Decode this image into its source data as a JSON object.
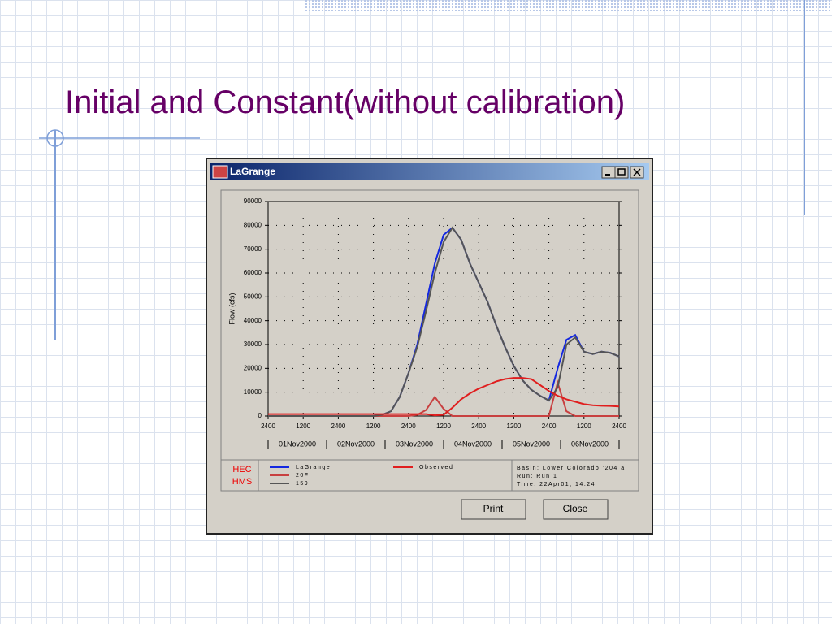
{
  "slide": {
    "title": "Initial and Constant(without calibration)"
  },
  "window": {
    "title": "LaGrange",
    "logo": [
      "HEC",
      "HMS"
    ],
    "info": [
      "Basin: Lower Colorado '204 a",
      "Run: Run 1",
      "Time: 22Apr01, 14:24"
    ],
    "buttons": [
      "Print",
      "Close"
    ]
  },
  "chart_data": {
    "type": "line",
    "y_label": "Flow (cfs)",
    "x": [
      0,
      3,
      6,
      9,
      12,
      15,
      18,
      21,
      24,
      27,
      30,
      33,
      36,
      39,
      42,
      45,
      48,
      51,
      54,
      57,
      60,
      63,
      66,
      69,
      72,
      75,
      78,
      81,
      84,
      87,
      90,
      93,
      96,
      99,
      102,
      105,
      108,
      111,
      114,
      117,
      120
    ],
    "xlim": [
      0,
      120
    ],
    "xticks": [
      {
        "value": 0,
        "label": "2400"
      },
      {
        "value": 12,
        "label": "1200"
      },
      {
        "value": 24,
        "label": "2400"
      },
      {
        "value": 36,
        "label": "1200"
      },
      {
        "value": 48,
        "label": "2400"
      },
      {
        "value": 60,
        "label": "1200"
      },
      {
        "value": 72,
        "label": "2400"
      },
      {
        "value": 84,
        "label": "1200"
      },
      {
        "value": 96,
        "label": "2400"
      },
      {
        "value": 108,
        "label": "1200"
      },
      {
        "value": 120,
        "label": "2400"
      }
    ],
    "day_labels": [
      "01Nov2000",
      "02Nov2000",
      "03Nov2000",
      "04Nov2000",
      "05Nov2000",
      "06Nov2000"
    ],
    "ylim": [
      0,
      90000
    ],
    "yticks": [
      0,
      10000,
      20000,
      30000,
      40000,
      50000,
      60000,
      70000,
      80000,
      90000
    ],
    "grid": true,
    "series": [
      {
        "name": "LaGrange",
        "color": "#1428e0",
        "values": [
          0,
          0,
          0,
          0,
          0,
          0,
          0,
          0,
          0,
          0,
          0,
          0,
          0,
          500,
          2000,
          8000,
          18000,
          30000,
          47000,
          64000,
          76000,
          79000,
          74000,
          64000,
          56000,
          48000,
          38000,
          29000,
          21000,
          15000,
          11000,
          8500,
          6500,
          20000,
          32000,
          34000,
          27000,
          26000,
          27000,
          26500,
          25000
        ]
      },
      {
        "name": "20F",
        "color": "#c84040",
        "values": [
          0,
          0,
          0,
          0,
          0,
          0,
          0,
          0,
          0,
          0,
          0,
          0,
          0,
          0,
          0,
          0,
          0,
          500,
          2500,
          8000,
          3000,
          0,
          0,
          0,
          0,
          0,
          0,
          0,
          0,
          0,
          0,
          0,
          0,
          14000,
          2000,
          0,
          0,
          0,
          0,
          0,
          0
        ]
      },
      {
        "name": "159",
        "color": "#555555",
        "values": [
          0,
          0,
          0,
          0,
          0,
          0,
          0,
          0,
          0,
          0,
          0,
          0,
          0,
          500,
          2000,
          8000,
          18000,
          29000,
          44000,
          60000,
          73000,
          79000,
          74000,
          64000,
          56000,
          48000,
          38000,
          29000,
          21000,
          15000,
          11000,
          8500,
          6500,
          12000,
          30000,
          33000,
          27000,
          26000,
          27000,
          26500,
          25000
        ]
      },
      {
        "name": "Observed",
        "color": "#e01e1e",
        "values": [
          800,
          800,
          800,
          800,
          800,
          800,
          800,
          800,
          800,
          800,
          800,
          800,
          800,
          800,
          800,
          800,
          800,
          800,
          800,
          300,
          500,
          3500,
          7000,
          9500,
          11500,
          13000,
          14500,
          15500,
          16000,
          16000,
          15500,
          13000,
          10500,
          8500,
          7000,
          6000,
          5000,
          4500,
          4300,
          4200,
          4000
        ]
      }
    ]
  }
}
